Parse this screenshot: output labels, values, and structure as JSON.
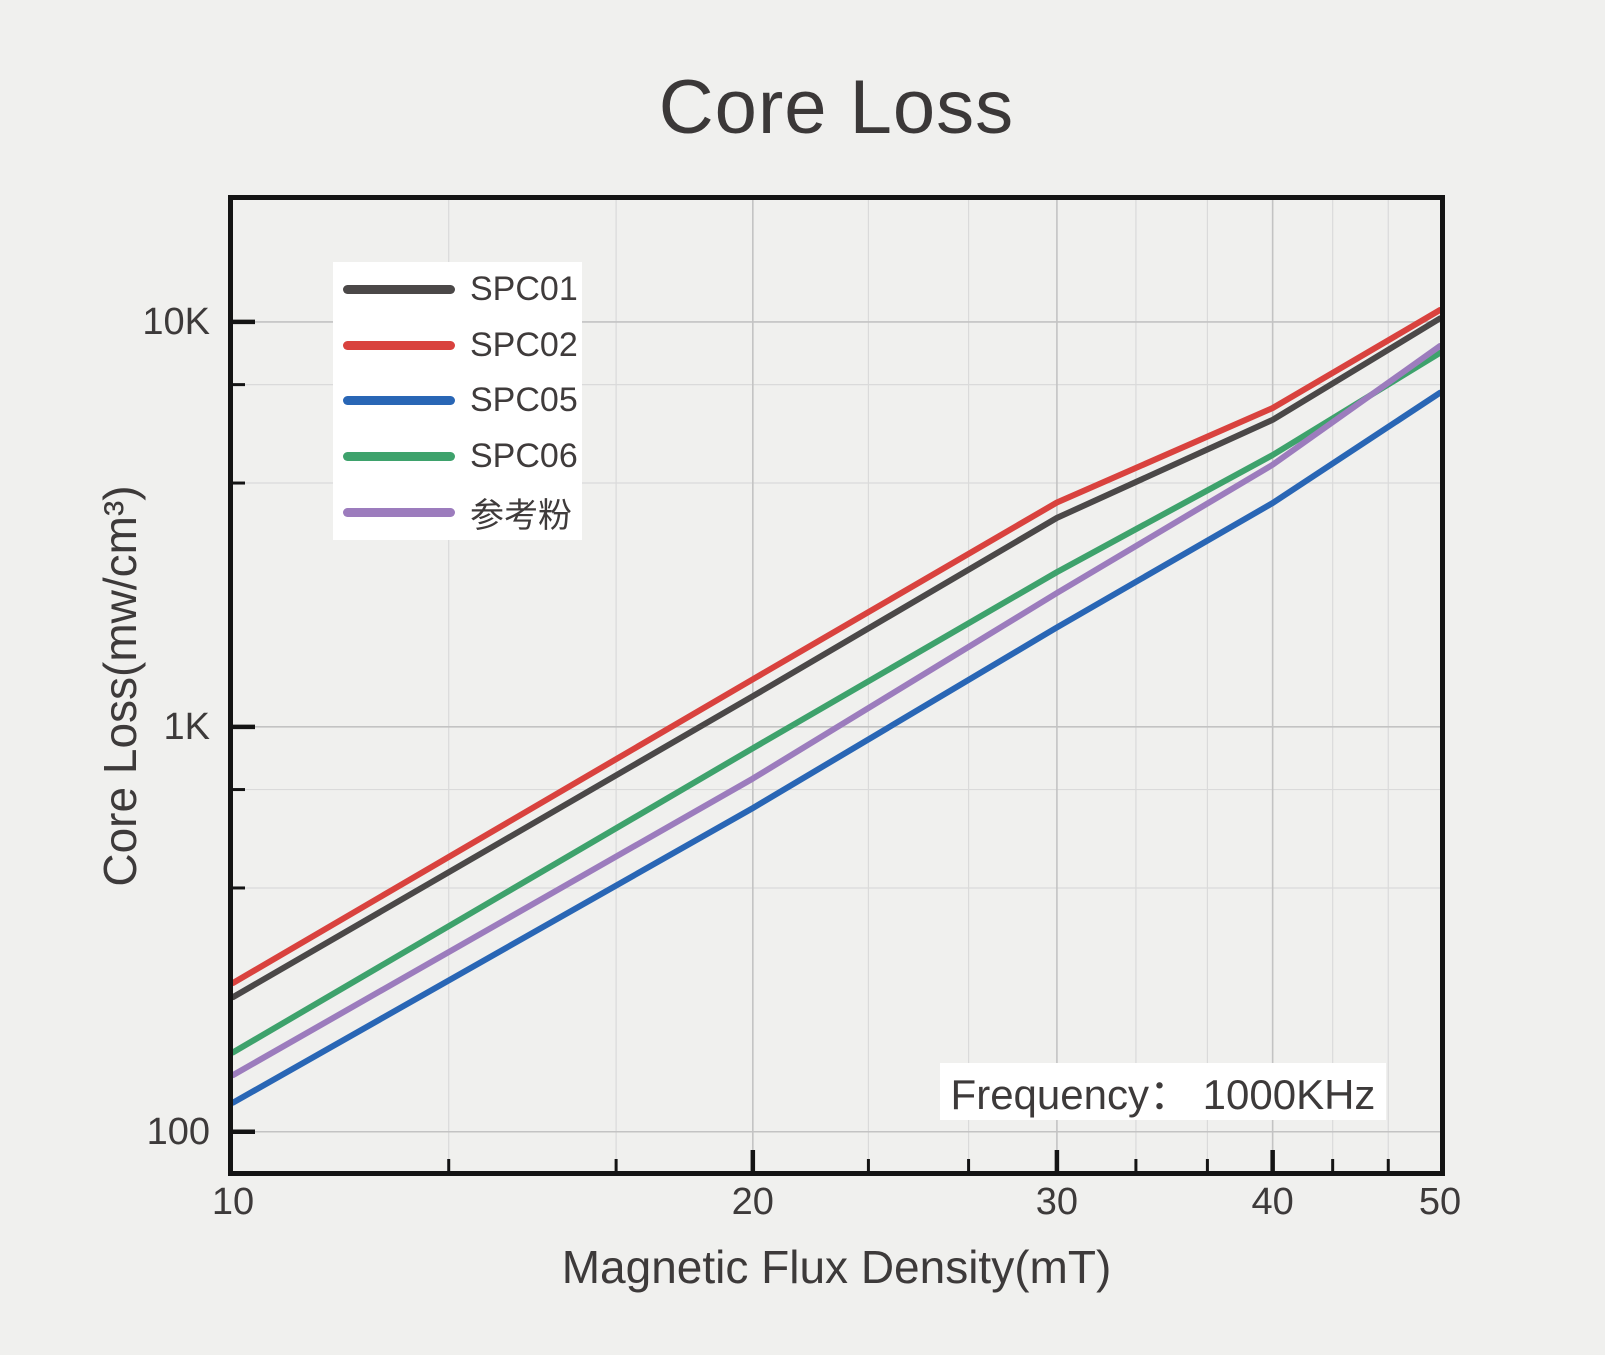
{
  "title": "Core Loss",
  "annotation": "Frequency： 1000KHz",
  "colors": {
    "background": "#f0f0ee",
    "axis_frame": "#141414",
    "grid_major": "#c3c3c3",
    "grid_minor": "#dadada",
    "text": "#3c3939",
    "legend_background": "#ffffff"
  },
  "chart_data": {
    "type": "line",
    "title": "Core Loss",
    "xlabel": "Magnetic Flux Density(mT)",
    "ylabel": "Core Loss(mw/cm³)",
    "x_scale": "log",
    "y_scale": "log",
    "xlim": [
      10,
      50
    ],
    "ylim": [
      80,
      20000
    ],
    "grid": true,
    "legend_position": "upper-left",
    "annotation": "Frequency： 1000KHz",
    "x": [
      10,
      20,
      30,
      40,
      50
    ],
    "series": [
      {
        "name": "SPC01",
        "color": "#4b4848",
        "values": [
          215,
          1190,
          3280,
          5730,
          10200
        ]
      },
      {
        "name": "SPC02",
        "color": "#d9423e",
        "values": [
          233,
          1310,
          3580,
          6130,
          10700
        ]
      },
      {
        "name": "SPC05",
        "color": "#2966b5",
        "values": [
          118,
          630,
          1760,
          3570,
          6680
        ]
      },
      {
        "name": "SPC06",
        "color": "#3ea26c",
        "values": [
          157,
          885,
          2410,
          4690,
          8390
        ]
      },
      {
        "name": "参考粉",
        "color": "#9c7cbd",
        "values": [
          138,
          745,
          2140,
          4440,
          8720
        ]
      }
    ],
    "x_ticks_major": [
      10,
      20,
      30,
      40,
      50
    ],
    "x_tick_labels": [
      "10",
      "20",
      "30",
      "40",
      "50"
    ],
    "x_ticks_minor": [
      13.333,
      16.667,
      23.333,
      26.667,
      33.333,
      36.667,
      43.333,
      46.667
    ],
    "y_ticks_major": [
      100,
      1000,
      10000
    ],
    "y_tick_labels": [
      "100",
      "1K",
      "10K"
    ],
    "y_ticks_minor": [
      400,
      700,
      4000,
      7000
    ]
  }
}
